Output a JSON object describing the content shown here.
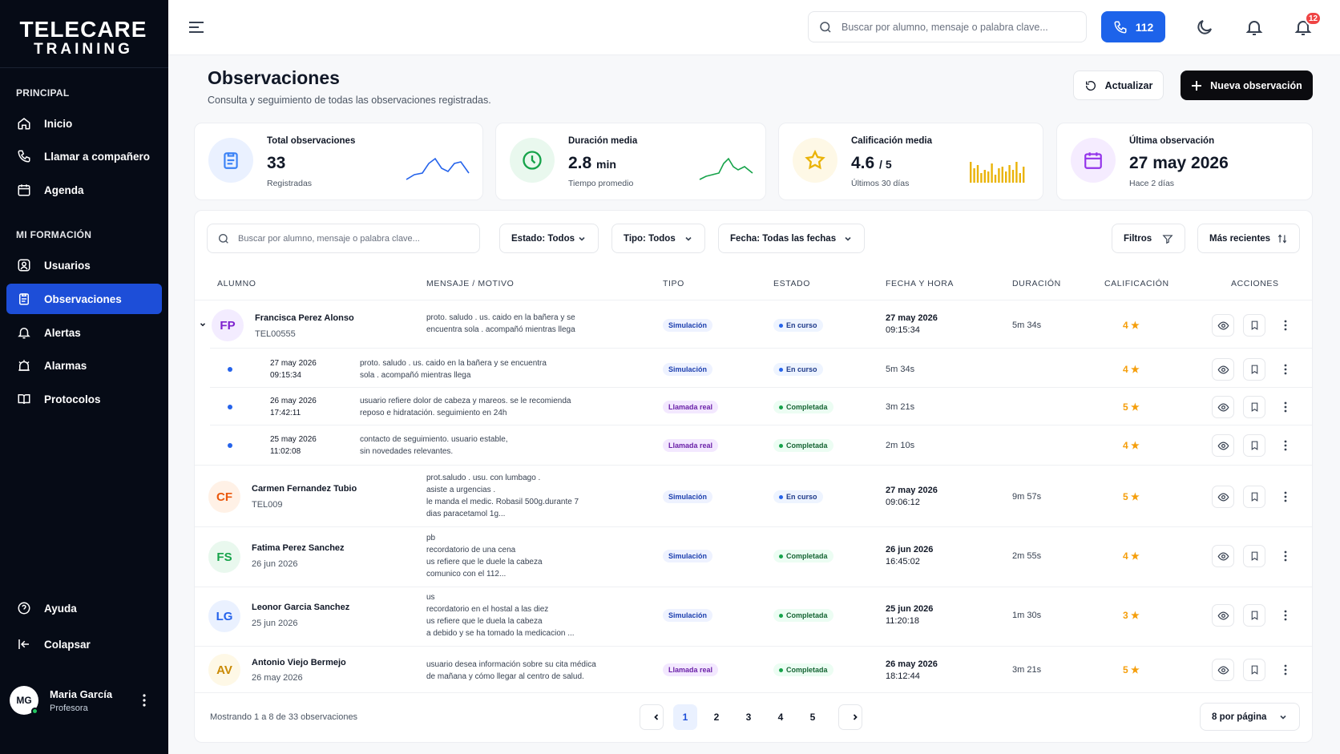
{
  "brand": {
    "line1": "TELECARE",
    "line2": "TRAINING"
  },
  "sidebar": {
    "section_principal": "PRINCIPAL",
    "section_formacion": "MI FORMACIÓN",
    "items": [
      {
        "label": "Inicio",
        "icon": "home-icon"
      },
      {
        "label": "Llamar a compañero",
        "icon": "phone-icon"
      },
      {
        "label": "Agenda",
        "icon": "calendar-icon"
      },
      {
        "label": "Usuarios",
        "icon": "user-square-icon"
      },
      {
        "label": "Observaciones",
        "icon": "clipboard-icon",
        "active": true
      },
      {
        "label": "Alertas",
        "icon": "bell-icon"
      },
      {
        "label": "Alarmas",
        "icon": "alarm-clock-icon"
      },
      {
        "label": "Protocolos",
        "icon": "book-icon"
      }
    ],
    "help": "Ayuda",
    "collapse": "Colapsar",
    "user": {
      "initials": "MG",
      "name": "Maria García",
      "role": "Profesora"
    }
  },
  "topbar": {
    "search_placeholder": "Buscar por alumno, mensaje o palabra clave...",
    "call_label": "112",
    "notifications_count": "12"
  },
  "page": {
    "title": "Observaciones",
    "subtitle": "Consulta y seguimiento de todas las observaciones registradas.",
    "refresh_label": "Actualizar",
    "new_label": "Nueva observación"
  },
  "stats": [
    {
      "label": "Total observaciones",
      "value": "33",
      "unit": "",
      "note": "Registradas",
      "color": "#3b82f6"
    },
    {
      "label": "Duración media",
      "value": "2.8",
      "unit": "min",
      "note": "Tiempo promedio",
      "color": "#16a34a"
    },
    {
      "label": "Calificación media",
      "value": "4.6",
      "unit": "/ 5",
      "note": "Últimos 30 días",
      "color": "#eab308"
    },
    {
      "label": "Última observación",
      "value": "27 may 2026",
      "unit": "",
      "note": "Hace 2 días",
      "color": "#9333ea"
    }
  ],
  "filters": {
    "search_placeholder": "Buscar por alumno, mensaje o palabra clave...",
    "estado": "Estado: Todos",
    "tipo": "Tipo: Todos",
    "fecha": "Fecha: Todas las fechas",
    "filtros": "Filtros",
    "sort": "Más recientes"
  },
  "table": {
    "headers": [
      "ALUMNO",
      "MENSAJE / MOTIVO",
      "TIPO",
      "ESTADO",
      "FECHA Y HORA",
      "DURACIÓN",
      "CALIFICACIÓN",
      "ACCIONES"
    ],
    "rows": [
      {
        "initials": "FP",
        "name": "Francisca Perez Alonso",
        "code": "TEL00555",
        "msg": [
          "proto. saludo . us. caido en la bañera y se",
          "encuentra sola . acompañó mientras llega"
        ],
        "tipo": "Simulación",
        "estado": "En curso",
        "date": "27 may 2026",
        "time": "09:15:34",
        "dur": "5m 34s",
        "rate": "4 ★"
      },
      {
        "initials": "CF",
        "name": "Carmen Fernandez Tubio",
        "code": "TEL009",
        "msg": [
          "prot.saludo . usu. con lumbago .",
          "asiste a urgencias .",
          "le manda el medic. Robasil 500g.durante 7",
          "dias paracetamol 1g..."
        ],
        "tipo": "Simulación",
        "estado": "En curso",
        "date": "27 may 2026",
        "time": "09:06:12",
        "dur": "9m 57s",
        "rate": "5 ★"
      },
      {
        "initials": "FS",
        "name": "Fatima Perez Sanchez",
        "code": "26 jun 2026",
        "msg": [
          "pb",
          "recordatorio de una cena",
          "us refiere que le duele la cabeza",
          "comunico con el 112..."
        ],
        "tipo": "Simulación",
        "estado": "Completada",
        "date": "26 jun 2026",
        "time": "16:45:02",
        "dur": "2m 55s",
        "rate": "4 ★"
      },
      {
        "initials": "LG",
        "name": "Leonor Garcia Sanchez",
        "code": "25 jun 2026",
        "msg": [
          "us",
          "recordatorio en el hostal a las diez",
          "us refiere que le duela la cabeza",
          "a debido y se ha tomado la medicacion ..."
        ],
        "tipo": "Simulación",
        "estado": "Completada",
        "date": "25 jun 2026",
        "time": "11:20:18",
        "dur": "1m 30s",
        "rate": "3 ★"
      },
      {
        "initials": "AV",
        "name": "Antonio Viejo Bermejo",
        "code": "26 may 2026",
        "msg": [
          "usuario desea información sobre su cita médica",
          "de mañana y cómo llegar al centro de salud."
        ],
        "tipo": "Llamada real",
        "estado": "Completada",
        "date": "26 may 2026",
        "time": "18:12:44",
        "dur": "3m 21s",
        "rate": "5 ★"
      }
    ],
    "subrows": [
      {
        "date": "27 may 2026",
        "time": "09:15:34",
        "msg": [
          "proto. saludo . us. caido en la bañera y se encuentra",
          "sola . acompañó mientras llega"
        ],
        "tipo": "Simulación",
        "estado": "En curso",
        "dur": "5m 34s",
        "rate": "4 ★"
      },
      {
        "date": "26 may 2026",
        "time": "17:42:11",
        "msg": [
          "usuario refiere dolor de cabeza y mareos. se le recomienda",
          "reposo e hidratación. seguimiento en 24h"
        ],
        "tipo": "Llamada real",
        "estado": "Completada",
        "dur": "3m 21s",
        "rate": "5 ★"
      },
      {
        "date": "25 may 2026",
        "time": "11:02:08",
        "msg": [
          "contacto de seguimiento. usuario estable,",
          "sin novedades relevantes."
        ],
        "tipo": "Llamada real",
        "estado": "Completada",
        "dur": "2m 10s",
        "rate": "4 ★"
      }
    ]
  },
  "pagination": {
    "info": "Mostrando 1 a 8 de 33 observaciones",
    "pages": [
      "1",
      "2",
      "3",
      "4",
      "5"
    ],
    "current": "1",
    "per_page": "8 por página"
  }
}
